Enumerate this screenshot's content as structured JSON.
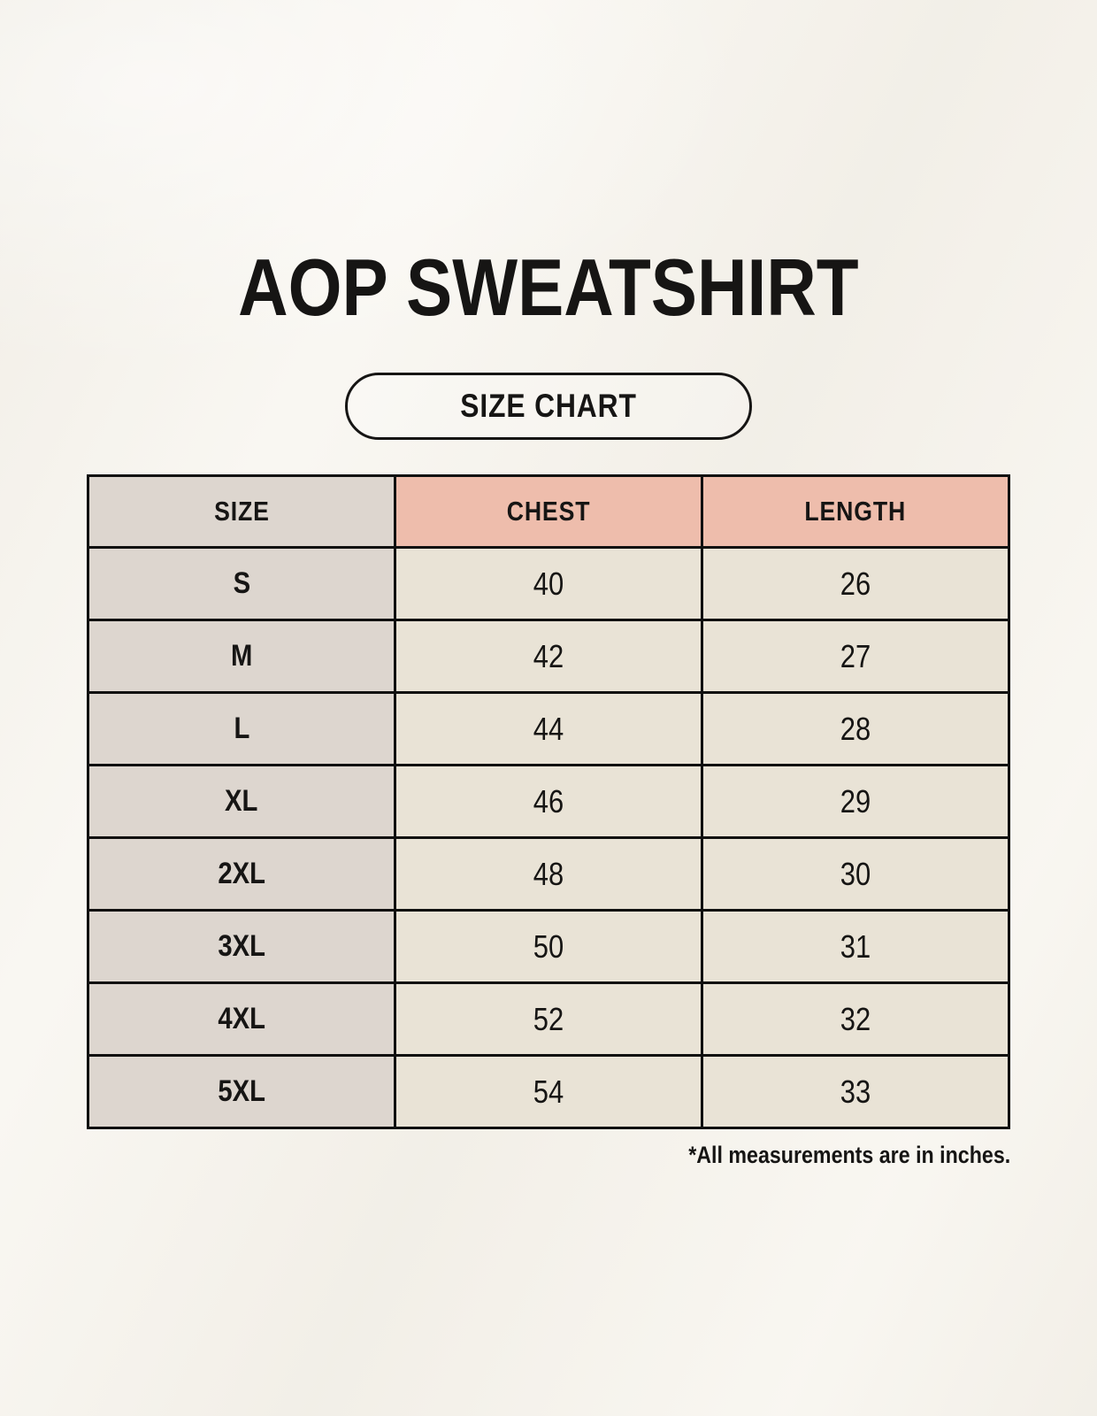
{
  "header": {
    "title": "AOP SWEATSHIRT",
    "badge_label": "SIZE CHART"
  },
  "chart_data": {
    "type": "table",
    "title": "AOP SWEATSHIRT",
    "subtitle": "SIZE CHART",
    "columns": [
      "SIZE",
      "CHEST",
      "LENGTH"
    ],
    "rows": [
      [
        "S",
        40,
        26
      ],
      [
        "M",
        42,
        27
      ],
      [
        "L",
        44,
        28
      ],
      [
        "XL",
        46,
        29
      ],
      [
        "2XL",
        48,
        30
      ],
      [
        "3XL",
        50,
        31
      ],
      [
        "4XL",
        52,
        32
      ],
      [
        "5XL",
        54,
        33
      ]
    ],
    "units": "inches",
    "footnote": "*All measurements are in inches."
  },
  "colors": {
    "page_background": "#f7f4ed",
    "size_column_fill": "#ddd6cf",
    "accent_header_fill": "#eebdac",
    "value_cell_fill": "#e9e3d6",
    "table_border": "#101010",
    "text": "#161514"
  }
}
